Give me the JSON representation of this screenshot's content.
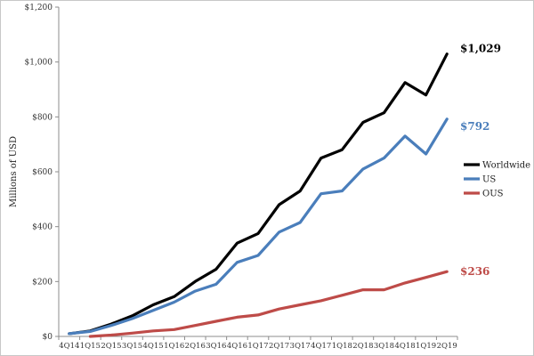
{
  "chart_data": {
    "type": "line",
    "title": "",
    "xlabel": "",
    "ylabel": "Millions of USD",
    "ylim": [
      0,
      1200
    ],
    "y_ticks": [
      0,
      200,
      400,
      600,
      800,
      1000,
      1200
    ],
    "y_tick_labels": [
      "$0",
      "$200",
      "$400",
      "$600",
      "$800",
      "$1,000",
      "$1,200"
    ],
    "categories": [
      "4Q14",
      "1Q15",
      "2Q15",
      "3Q15",
      "4Q15",
      "1Q16",
      "2Q16",
      "3Q16",
      "4Q16",
      "1Q17",
      "2Q17",
      "3Q17",
      "4Q17",
      "1Q18",
      "2Q18",
      "3Q18",
      "4Q18",
      "1Q19",
      "2Q19"
    ],
    "grid": false,
    "legend_position": "right",
    "series": [
      {
        "name": "Worldwide",
        "color": "#000000",
        "values": [
          10,
          20,
          45,
          75,
          115,
          145,
          200,
          245,
          340,
          375,
          480,
          530,
          650,
          680,
          780,
          815,
          925,
          880,
          1029
        ],
        "end_label": "$1,029"
      },
      {
        "name": "US",
        "color": "#4a7ebb",
        "values": [
          10,
          18,
          40,
          65,
          95,
          125,
          165,
          190,
          270,
          295,
          380,
          415,
          520,
          530,
          610,
          650,
          730,
          665,
          792
        ],
        "end_label": "$792"
      },
      {
        "name": "OUS",
        "color": "#be4b48",
        "values": [
          null,
          0,
          5,
          12,
          20,
          25,
          40,
          55,
          70,
          78,
          100,
          115,
          130,
          150,
          170,
          170,
          195,
          215,
          236
        ],
        "end_label": "$236"
      }
    ]
  }
}
